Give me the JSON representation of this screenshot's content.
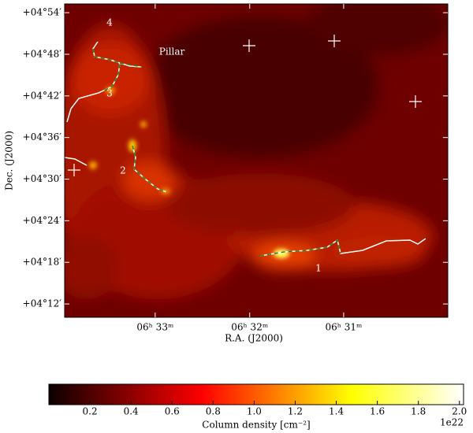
{
  "chart_data": {
    "type": "image",
    "xlabel": "R.A. (J2000)",
    "ylabel": "Dec. (J2000)",
    "xlim": [
      6.566,
      6.4983
    ],
    "xticks": [
      {
        "value": 6.55,
        "label": "06ʰ 33ᵐ"
      },
      {
        "value": 6.5333,
        "label": "06ʰ 32ᵐ"
      },
      {
        "value": 6.5167,
        "label": "06ʰ 31ᵐ"
      }
    ],
    "ylim": [
      4.168,
      4.921
    ],
    "yticks": [
      {
        "value": 4.2,
        "label": "+04°12′"
      },
      {
        "value": 4.3,
        "label": "+04°18′"
      },
      {
        "value": 4.4,
        "label": "+04°24′"
      },
      {
        "value": 4.5,
        "label": "+04°30′"
      },
      {
        "value": 4.6,
        "label": "+04°36′"
      },
      {
        "value": 4.7,
        "label": "+04°42′"
      },
      {
        "value": 4.8,
        "label": "+04°48′"
      },
      {
        "value": 4.9,
        "label": "+04°54′"
      }
    ],
    "annotations": [
      "Pillar",
      "1",
      "2",
      "3",
      "4"
    ],
    "colorbar": {
      "label": "Column density [cm⁻²]",
      "colormap": "hot",
      "clim": [
        0,
        2.02
      ],
      "ticks": [
        0.2,
        0.4,
        0.6,
        0.8,
        {
          "value": 1,
          "label": "1.0"
        },
        1.2,
        1.4,
        1.6,
        1.8,
        {
          "value": 2,
          "label": "2.0"
        }
      ],
      "offset_text": "1e22"
    }
  }
}
